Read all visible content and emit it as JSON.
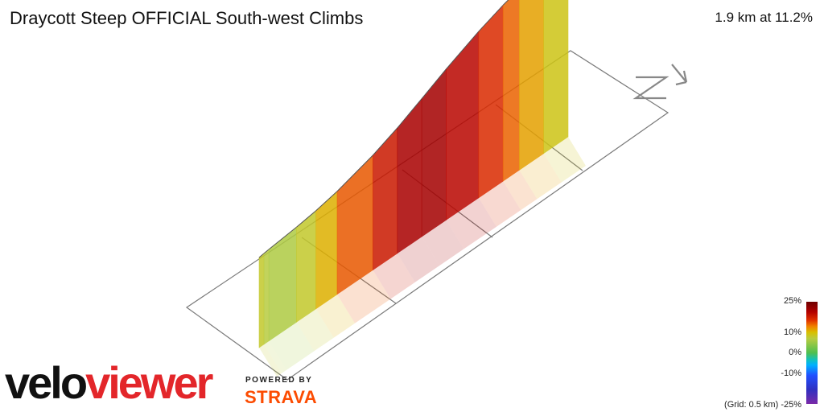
{
  "title": "Draycott Steep OFFICIAL South-west Climbs",
  "summary": "1.9 km at 11.2%",
  "brand": {
    "velo": "velo",
    "viewer": "viewer",
    "powered_by": "POWERED BY",
    "strava": "STRAVA"
  },
  "compass_icon": "north-arrow-icon",
  "legend": {
    "labels": [
      "25%",
      "10%",
      "0%",
      "-10%",
      "(Grid: 0.5 km) -25%"
    ]
  },
  "colors": {
    "velo": "#111111",
    "viewer": "#e3262a",
    "strava": "#fc4c02"
  },
  "chart_data": {
    "type": "area",
    "distance_km": [
      0.0,
      0.03,
      0.06,
      0.23,
      0.35,
      0.48,
      0.7,
      0.85,
      1.0,
      1.15,
      1.35,
      1.5,
      1.6,
      1.75,
      1.9
    ],
    "gradient_pct": [
      6,
      6,
      4,
      5,
      7,
      10,
      14,
      18,
      20,
      19,
      16,
      13,
      10,
      8,
      6
    ],
    "legend_range_pct": [
      -25,
      25
    ],
    "grid_km": 0.5
  }
}
